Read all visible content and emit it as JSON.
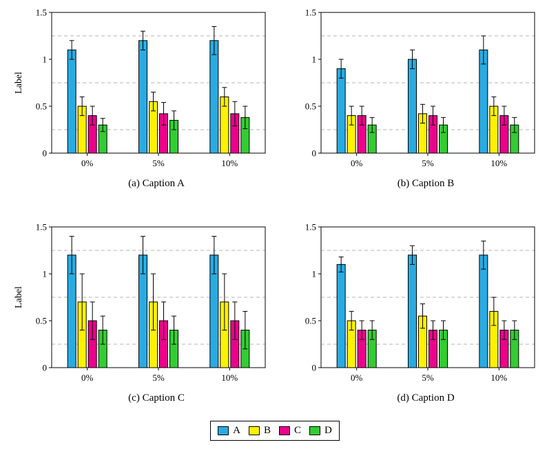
{
  "figure": {
    "legend": {
      "entries": [
        {
          "label": "A",
          "color": "#29ABE2"
        },
        {
          "label": "B",
          "color": "#FFF200"
        },
        {
          "label": "C",
          "color": "#EC008C"
        },
        {
          "label": "D",
          "color": "#33CC33"
        }
      ]
    }
  },
  "chart_data": [
    {
      "type": "bar",
      "caption": "(a) Caption A",
      "ylabel": "Label",
      "xlabel": "",
      "categories": [
        "0%",
        "5%",
        "10%"
      ],
      "ylim": [
        0,
        1.5
      ],
      "yticks": [
        0,
        0.5,
        1,
        1.5
      ],
      "grid_dashed_at": [
        0.25,
        0.75,
        1.25
      ],
      "legend_position": "bottom-shared",
      "series": [
        {
          "name": "A",
          "color": "#29ABE2",
          "values": [
            1.1,
            1.2,
            1.2
          ],
          "errors": [
            0.1,
            0.1,
            0.15
          ]
        },
        {
          "name": "B",
          "color": "#FFF200",
          "values": [
            0.5,
            0.55,
            0.6
          ],
          "errors": [
            0.1,
            0.1,
            0.1
          ]
        },
        {
          "name": "C",
          "color": "#EC008C",
          "values": [
            0.4,
            0.42,
            0.42
          ],
          "errors": [
            0.1,
            0.12,
            0.13
          ]
        },
        {
          "name": "D",
          "color": "#33CC33",
          "values": [
            0.3,
            0.35,
            0.38
          ],
          "errors": [
            0.07,
            0.1,
            0.12
          ]
        }
      ]
    },
    {
      "type": "bar",
      "caption": "(b) Caption B",
      "ylabel": "",
      "xlabel": "",
      "categories": [
        "0%",
        "5%",
        "10%"
      ],
      "ylim": [
        0,
        1.5
      ],
      "yticks": [
        0,
        0.5,
        1,
        1.5
      ],
      "grid_dashed_at": [
        0.25,
        0.75,
        1.25
      ],
      "legend_position": "bottom-shared",
      "series": [
        {
          "name": "A",
          "color": "#29ABE2",
          "values": [
            0.9,
            1.0,
            1.1
          ],
          "errors": [
            0.1,
            0.1,
            0.15
          ]
        },
        {
          "name": "B",
          "color": "#FFF200",
          "values": [
            0.4,
            0.42,
            0.5
          ],
          "errors": [
            0.1,
            0.1,
            0.1
          ]
        },
        {
          "name": "C",
          "color": "#EC008C",
          "values": [
            0.4,
            0.4,
            0.4
          ],
          "errors": [
            0.1,
            0.1,
            0.1
          ]
        },
        {
          "name": "D",
          "color": "#33CC33",
          "values": [
            0.3,
            0.3,
            0.3
          ],
          "errors": [
            0.08,
            0.08,
            0.08
          ]
        }
      ]
    },
    {
      "type": "bar",
      "caption": "(c) Caption C",
      "ylabel": "Label",
      "xlabel": "",
      "categories": [
        "0%",
        "5%",
        "10%"
      ],
      "ylim": [
        0,
        1.5
      ],
      "yticks": [
        0,
        0.5,
        1,
        1.5
      ],
      "grid_dashed_at": [
        0.25,
        0.75,
        1.25
      ],
      "legend_position": "bottom-shared",
      "series": [
        {
          "name": "A",
          "color": "#29ABE2",
          "values": [
            1.2,
            1.2,
            1.2
          ],
          "errors": [
            0.2,
            0.2,
            0.2
          ]
        },
        {
          "name": "B",
          "color": "#FFF200",
          "values": [
            0.7,
            0.7,
            0.7
          ],
          "errors": [
            0.3,
            0.3,
            0.3
          ]
        },
        {
          "name": "C",
          "color": "#EC008C",
          "values": [
            0.5,
            0.5,
            0.5
          ],
          "errors": [
            0.2,
            0.2,
            0.2
          ]
        },
        {
          "name": "D",
          "color": "#33CC33",
          "values": [
            0.4,
            0.4,
            0.4
          ],
          "errors": [
            0.15,
            0.15,
            0.2
          ]
        }
      ]
    },
    {
      "type": "bar",
      "caption": "(d) Caption D",
      "ylabel": "",
      "xlabel": "",
      "categories": [
        "0%",
        "5%",
        "10%"
      ],
      "ylim": [
        0,
        1.5
      ],
      "yticks": [
        0,
        0.5,
        1,
        1.5
      ],
      "grid_dashed_at": [
        0.25,
        0.75,
        1.25
      ],
      "legend_position": "bottom-shared",
      "series": [
        {
          "name": "A",
          "color": "#29ABE2",
          "values": [
            1.1,
            1.2,
            1.2
          ],
          "errors": [
            0.08,
            0.1,
            0.15
          ]
        },
        {
          "name": "B",
          "color": "#FFF200",
          "values": [
            0.5,
            0.55,
            0.6
          ],
          "errors": [
            0.1,
            0.13,
            0.15
          ]
        },
        {
          "name": "C",
          "color": "#EC008C",
          "values": [
            0.4,
            0.4,
            0.4
          ],
          "errors": [
            0.1,
            0.1,
            0.1
          ]
        },
        {
          "name": "D",
          "color": "#33CC33",
          "values": [
            0.4,
            0.4,
            0.4
          ],
          "errors": [
            0.1,
            0.1,
            0.1
          ]
        }
      ]
    }
  ]
}
